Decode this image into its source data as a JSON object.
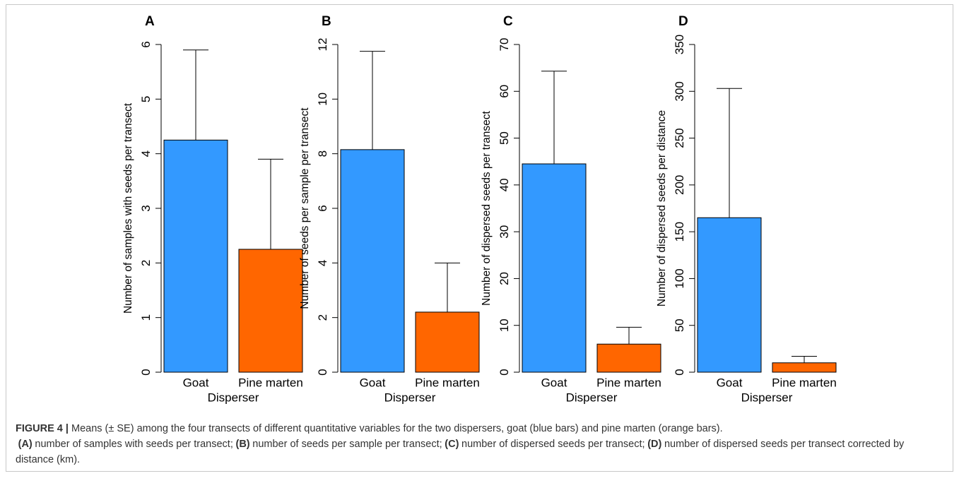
{
  "chart_data": [
    {
      "type": "bar",
      "panel": "A",
      "ylabel": "Number of samples with seeds per transect",
      "xlabel": "Disperser",
      "categories": [
        "Goat",
        "Pine marten"
      ],
      "values": [
        4.25,
        2.25
      ],
      "errors": [
        1.65,
        1.65
      ],
      "colors": [
        "#3399ff",
        "#ff6600"
      ],
      "ylim": [
        0,
        6
      ],
      "yticks": [
        0,
        1,
        2,
        3,
        4,
        5,
        6
      ]
    },
    {
      "type": "bar",
      "panel": "B",
      "ylabel": "Number of seeds per sample per transect",
      "xlabel": "Disperser",
      "categories": [
        "Goat",
        "Pine marten"
      ],
      "values": [
        8.15,
        2.2
      ],
      "errors": [
        3.6,
        1.8
      ],
      "colors": [
        "#3399ff",
        "#ff6600"
      ],
      "ylim": [
        0,
        12
      ],
      "yticks": [
        0,
        2,
        4,
        6,
        8,
        10,
        12
      ]
    },
    {
      "type": "bar",
      "panel": "C",
      "ylabel": "Number of dispersed seeds per transect",
      "xlabel": "Disperser",
      "categories": [
        "Goat",
        "Pine marten"
      ],
      "values": [
        44.5,
        6.0
      ],
      "errors": [
        19.8,
        3.6
      ],
      "colors": [
        "#3399ff",
        "#ff6600"
      ],
      "ylim": [
        0,
        70
      ],
      "yticks": [
        0,
        10,
        20,
        30,
        40,
        50,
        60,
        70
      ]
    },
    {
      "type": "bar",
      "panel": "D",
      "ylabel": "Number of dispersed seeds per distance",
      "xlabel": "Disperser",
      "categories": [
        "Goat",
        "Pine marten"
      ],
      "values": [
        165,
        10
      ],
      "errors": [
        138,
        7
      ],
      "colors": [
        "#3399ff",
        "#ff6600"
      ],
      "ylim": [
        0,
        350
      ],
      "yticks": [
        0,
        50,
        100,
        150,
        200,
        250,
        300,
        350
      ]
    }
  ],
  "caption": {
    "label": "FIGURE 4 |",
    "text": "Means (± SE) among the four transects of different quantitative variables for the two dispersers, goat (blue bars) and pine marten (orange bars).",
    "items": [
      {
        "key": "(A)",
        "text": "number of samples with seeds per transect;"
      },
      {
        "key": "(B)",
        "text": "number of seeds per sample per transect;"
      },
      {
        "key": "(C)",
        "text": "number of dispersed seeds per transect;"
      },
      {
        "key": "(D)",
        "text": "number of dispersed seeds per transect corrected by distance (km)."
      }
    ]
  }
}
